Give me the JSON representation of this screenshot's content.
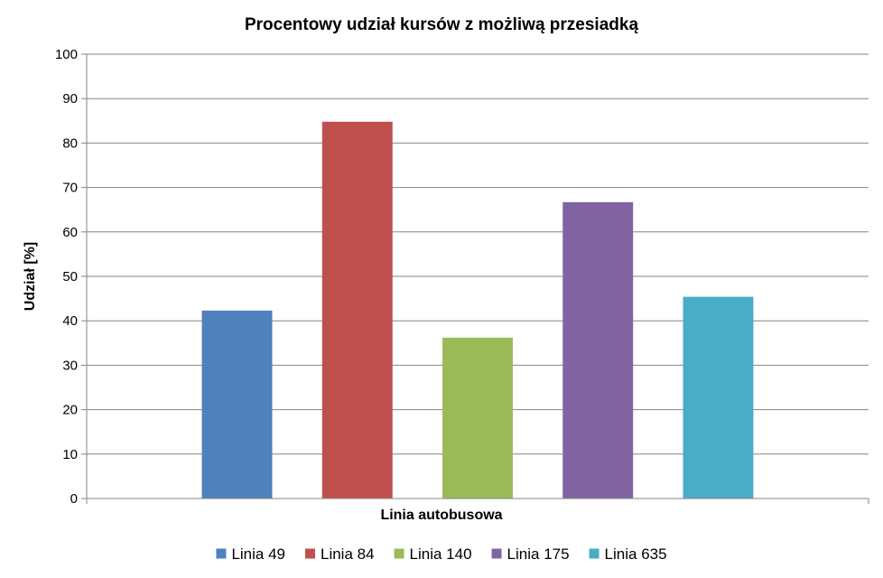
{
  "chart_data": {
    "type": "bar",
    "title": "Procentowy udział kursów z możliwą przesiadką",
    "xlabel": "Linia autobusowa",
    "ylabel": "Udział [%]",
    "ylim": [
      0,
      100
    ],
    "yticks": [
      0,
      10,
      20,
      30,
      40,
      50,
      60,
      70,
      80,
      90,
      100
    ],
    "grid": true,
    "legend_position": "bottom",
    "series": [
      {
        "name": "Linia 49",
        "value": 42.3,
        "color": "#4F81BD"
      },
      {
        "name": "Linia 84",
        "value": 84.8,
        "color": "#C0504D"
      },
      {
        "name": "Linia 140",
        "value": 36.2,
        "color": "#9BBB59"
      },
      {
        "name": "Linia 175",
        "value": 66.7,
        "color": "#8064A2"
      },
      {
        "name": "Linia 635",
        "value": 45.4,
        "color": "#4BACC6"
      }
    ]
  }
}
